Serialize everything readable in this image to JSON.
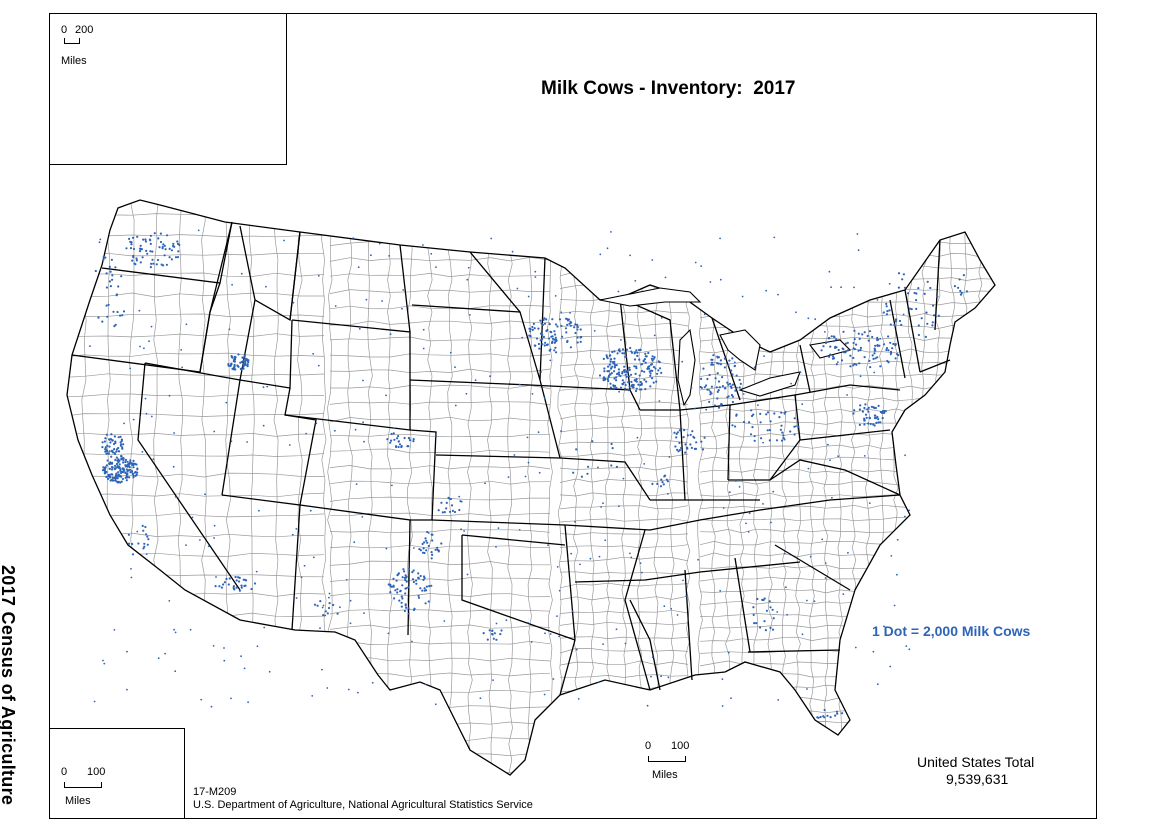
{
  "map": {
    "title": "Milk Cows - Inventory:  2017",
    "side_label": "2017 Census of Agriculture",
    "legend": "1 Dot = 2,000 Milk Cows",
    "total_label": "United States Total",
    "total_value": "9,539,631",
    "map_code": "17-M209",
    "source": "U.S. Department of Agriculture, National Agricultural Statistics Service",
    "dot_color": "#2e64b8",
    "scales": {
      "alaska": {
        "zero": "0",
        "distance": "200",
        "unit": "Miles"
      },
      "hawaii": {
        "zero": "0",
        "distance": "100",
        "unit": "Miles"
      },
      "main": {
        "zero": "0",
        "distance": "100",
        "unit": "Miles"
      }
    }
  }
}
